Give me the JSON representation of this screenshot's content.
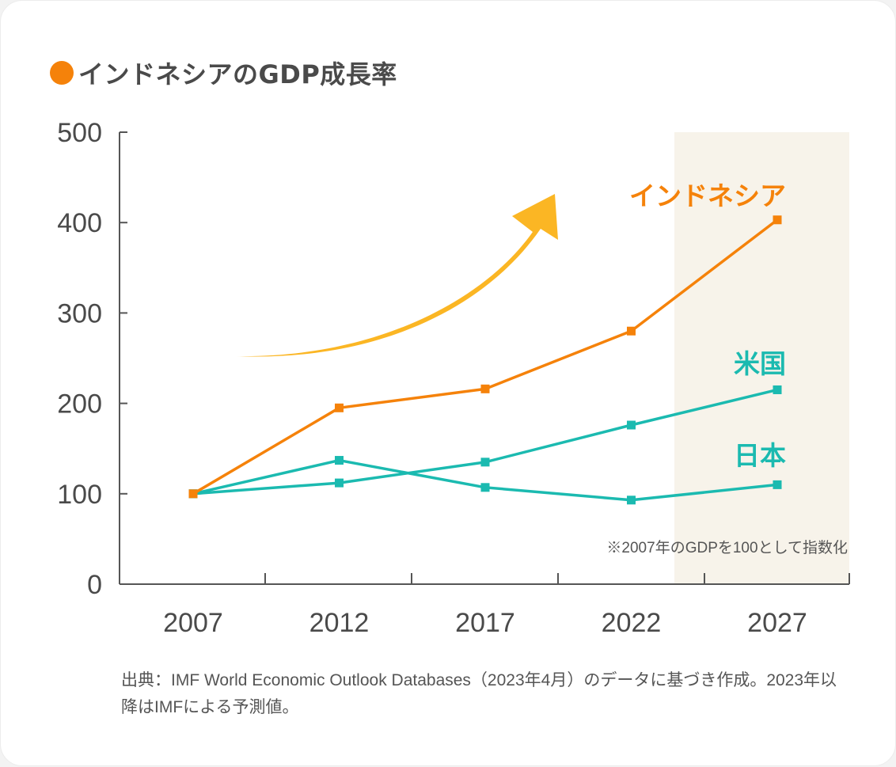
{
  "title": "インドネシアのGDP成長率",
  "colors": {
    "indonesia": "#f5820a",
    "us_japan": "#1bbab0",
    "arrow": "#fbb624",
    "forecast_bg": "#f7f3ea",
    "axis": "#555555",
    "text": "#4a4a4a"
  },
  "chart_data": {
    "type": "line",
    "x": [
      "2007",
      "2012",
      "2017",
      "2022",
      "2027"
    ],
    "ylim": [
      0,
      500
    ],
    "yticks": [
      "0",
      "100",
      "200",
      "300",
      "400",
      "500"
    ],
    "series": [
      {
        "name": "インドネシア",
        "color": "#f5820a",
        "values": [
          100,
          195,
          216,
          280,
          403
        ]
      },
      {
        "name": "米国",
        "color": "#1bbab0",
        "values": [
          100,
          112,
          135,
          176,
          215
        ]
      },
      {
        "name": "日本",
        "color": "#1bbab0",
        "values": [
          100,
          137,
          107,
          93,
          110
        ]
      }
    ],
    "forecast_from": "2023",
    "annotation": "※2007年のGDPを100として指数化"
  },
  "source": "出典：IMF World Economic Outlook Databases（2023年4月）のデータに基づき作成。2023年以降はIMFによる予測値。"
}
